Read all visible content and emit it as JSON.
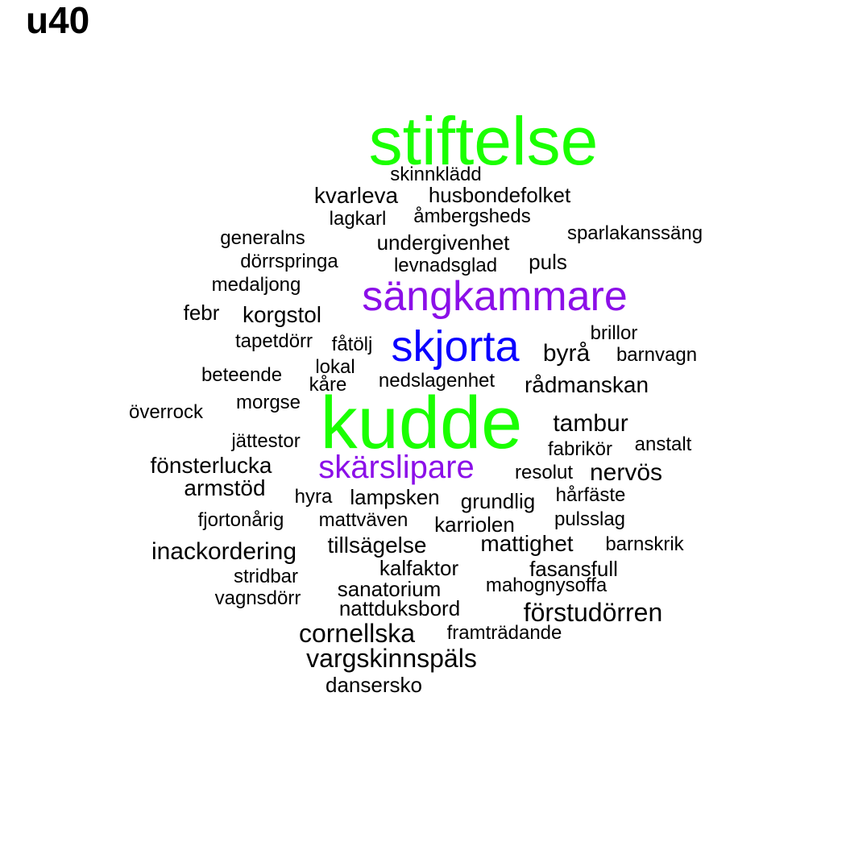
{
  "title": "u40",
  "colors": {
    "green": "#1aff00",
    "purple": "#8b0fe8",
    "blue": "#0a00ff",
    "black": "#000000"
  },
  "words": [
    {
      "text": "stiftelse",
      "color": "green"
    },
    {
      "text": "kudde",
      "color": "green"
    },
    {
      "text": "sängkammare",
      "color": "purple"
    },
    {
      "text": "skjorta",
      "color": "blue"
    },
    {
      "text": "skärslipare",
      "color": "purple"
    },
    {
      "text": "skinnklädd",
      "color": "black"
    },
    {
      "text": "kvarleva",
      "color": "black"
    },
    {
      "text": "husbondefolket",
      "color": "black"
    },
    {
      "text": "lagkarl",
      "color": "black"
    },
    {
      "text": "åmbergsheds",
      "color": "black"
    },
    {
      "text": "generalns",
      "color": "black"
    },
    {
      "text": "sparlakanssäng",
      "color": "black"
    },
    {
      "text": "undergivenhet",
      "color": "black"
    },
    {
      "text": "dörrspringa",
      "color": "black"
    },
    {
      "text": "levnadsglad",
      "color": "black"
    },
    {
      "text": "puls",
      "color": "black"
    },
    {
      "text": "medaljong",
      "color": "black"
    },
    {
      "text": "febr",
      "color": "black"
    },
    {
      "text": "korgstol",
      "color": "black"
    },
    {
      "text": "brillor",
      "color": "black"
    },
    {
      "text": "tapetdörr",
      "color": "black"
    },
    {
      "text": "fåtölj",
      "color": "black"
    },
    {
      "text": "byrå",
      "color": "black"
    },
    {
      "text": "barnvagn",
      "color": "black"
    },
    {
      "text": "lokal",
      "color": "black"
    },
    {
      "text": "beteende",
      "color": "black"
    },
    {
      "text": "kåre",
      "color": "black"
    },
    {
      "text": "nedslagenhet",
      "color": "black"
    },
    {
      "text": "rådmanskan",
      "color": "black"
    },
    {
      "text": "morgse",
      "color": "black"
    },
    {
      "text": "överrock",
      "color": "black"
    },
    {
      "text": "tambur",
      "color": "black"
    },
    {
      "text": "jättestor",
      "color": "black"
    },
    {
      "text": "fabrikör",
      "color": "black"
    },
    {
      "text": "anstalt",
      "color": "black"
    },
    {
      "text": "fönsterlucka",
      "color": "black"
    },
    {
      "text": "resolut",
      "color": "black"
    },
    {
      "text": "nervös",
      "color": "black"
    },
    {
      "text": "armstöd",
      "color": "black"
    },
    {
      "text": "hyra",
      "color": "black"
    },
    {
      "text": "lampsken",
      "color": "black"
    },
    {
      "text": "grundlig",
      "color": "black"
    },
    {
      "text": "hårfäste",
      "color": "black"
    },
    {
      "text": "fjortonårig",
      "color": "black"
    },
    {
      "text": "mattväven",
      "color": "black"
    },
    {
      "text": "karriolen",
      "color": "black"
    },
    {
      "text": "pulsslag",
      "color": "black"
    },
    {
      "text": "inackordering",
      "color": "black"
    },
    {
      "text": "tillsägelse",
      "color": "black"
    },
    {
      "text": "mattighet",
      "color": "black"
    },
    {
      "text": "barnskrik",
      "color": "black"
    },
    {
      "text": "kalfaktor",
      "color": "black"
    },
    {
      "text": "fasansfull",
      "color": "black"
    },
    {
      "text": "stridbar",
      "color": "black"
    },
    {
      "text": "sanatorium",
      "color": "black"
    },
    {
      "text": "mahognysoffa",
      "color": "black"
    },
    {
      "text": "vagnsdörr",
      "color": "black"
    },
    {
      "text": "nattduksbord",
      "color": "black"
    },
    {
      "text": "förstudörren",
      "color": "black"
    },
    {
      "text": "cornellska",
      "color": "black"
    },
    {
      "text": "framträdande",
      "color": "black"
    },
    {
      "text": "vargskinnspäls",
      "color": "black"
    },
    {
      "text": "dansersko",
      "color": "black"
    }
  ]
}
